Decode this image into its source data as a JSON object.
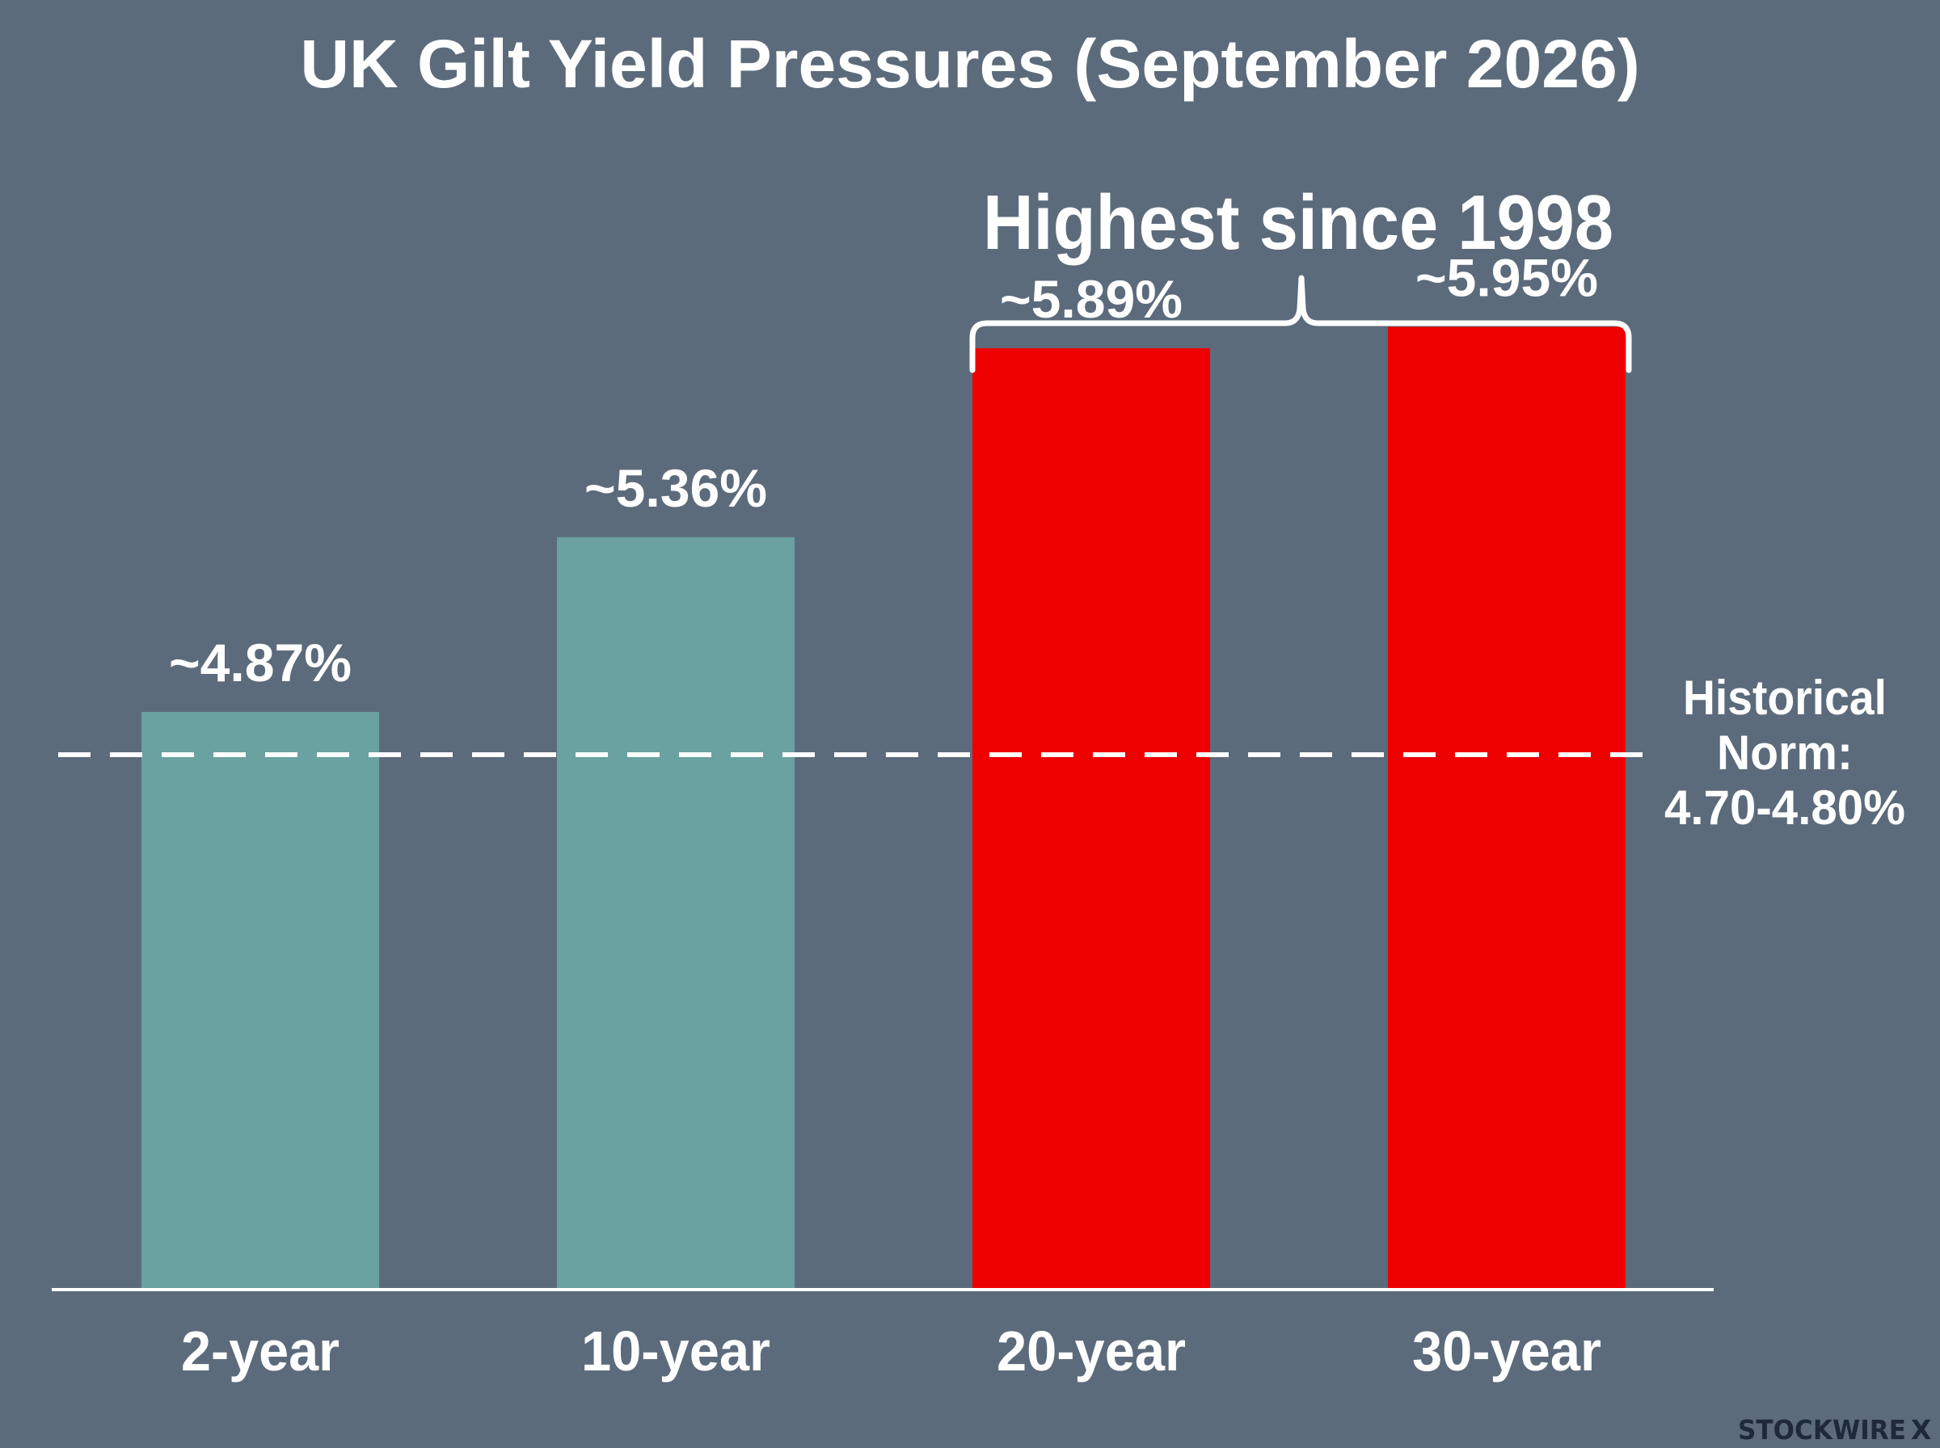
{
  "chart_data": {
    "type": "bar",
    "title": "UK Gilt Yield Pressures (September 2026)",
    "categories": [
      "2-year",
      "10-year",
      "20-year",
      "30-year"
    ],
    "values": [
      4.87,
      5.36,
      5.89,
      5.95
    ],
    "data_labels": [
      "~4.87%",
      "~5.36%",
      "~5.89%",
      "~5.95%"
    ],
    "bar_colors": [
      "#6aa1a1",
      "#6aa1a1",
      "#ee0000",
      "#ee0000"
    ],
    "reference_line": {
      "label_lines": [
        "Historical",
        "Norm:",
        "4.70-4.80%"
      ],
      "value": 4.75,
      "style": "dashed"
    },
    "annotation": {
      "text": "Highest since 1998",
      "categories": [
        "20-year",
        "30-year"
      ]
    },
    "ylim": [
      3.25,
      6.3
    ],
    "grid": false,
    "legend": "none"
  },
  "brand": {
    "text": "STOCKWIRE",
    "mark": "X"
  },
  "colors": {
    "background": "#5c6b7b",
    "text": "#ffffff",
    "brand_text": "#1e2a3a"
  }
}
